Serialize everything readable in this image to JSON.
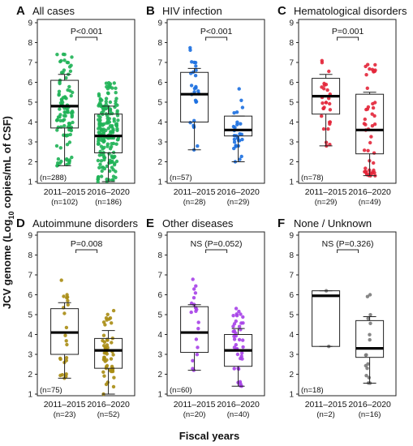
{
  "figure": {
    "y_axis_title": "JCV genome (Log10 copies/mL of CSF)",
    "x_axis_title": "Fiscal years"
  },
  "chart_data": [
    {
      "type": "box",
      "panel_label": "A",
      "title": "All cases",
      "n_total": "(n=288)",
      "p_text": "P<0.001",
      "color": "#1fb356",
      "ylim": [
        1,
        9
      ],
      "yticks": [
        1,
        2,
        3,
        4,
        5,
        6,
        7,
        8,
        9
      ],
      "categories": [
        "2011–2015",
        "2016–2020"
      ],
      "category_n": [
        "(n=102)",
        "(n=186)"
      ],
      "boxes": [
        {
          "q1": 3.7,
          "median": 4.8,
          "q3": 6.1,
          "whisker_low": 1.8,
          "whisker_high": 6.4,
          "n": 102
        },
        {
          "q1": 2.45,
          "median": 3.3,
          "q3": 4.4,
          "whisker_low": 1.0,
          "whisker_high": 4.8,
          "n": 186
        }
      ]
    },
    {
      "type": "box",
      "panel_label": "B",
      "title": "HIV infection",
      "n_total": "(n=57)",
      "p_text": "P<0.001",
      "color": "#1b6fe0",
      "ylim": [
        1,
        9
      ],
      "yticks": [
        1,
        2,
        3,
        4,
        5,
        6,
        7,
        8,
        9
      ],
      "categories": [
        "2011–2015",
        "2016–2020"
      ],
      "category_n": [
        "(n=28)",
        "(n=29)"
      ],
      "boxes": [
        {
          "q1": 4.0,
          "median": 5.4,
          "q3": 6.5,
          "whisker_low": 2.6,
          "whisker_high": 6.7,
          "n": 28
        },
        {
          "q1": 3.3,
          "median": 3.6,
          "q3": 4.3,
          "whisker_low": 2.0,
          "whisker_high": 4.3,
          "n": 29
        }
      ]
    },
    {
      "type": "box",
      "panel_label": "C",
      "title": "Hematological disorders",
      "n_total": "(n=78)",
      "p_text": "P=0.001",
      "color": "#e3263a",
      "ylim": [
        1,
        9
      ],
      "yticks": [
        1,
        2,
        3,
        4,
        5,
        6,
        7,
        8,
        9
      ],
      "categories": [
        "2011–2015",
        "2016–2020"
      ],
      "category_n": [
        "(n=29)",
        "(n=49)"
      ],
      "boxes": [
        {
          "q1": 4.4,
          "median": 5.3,
          "q3": 6.2,
          "whisker_low": 2.8,
          "whisker_high": 6.4,
          "n": 29
        },
        {
          "q1": 2.4,
          "median": 3.6,
          "q3": 5.4,
          "whisker_low": 1.3,
          "whisker_high": 5.5,
          "n": 49
        }
      ]
    },
    {
      "type": "box",
      "panel_label": "D",
      "title": "Autoimmune disorders",
      "n_total": "(n=75)",
      "p_text": "P=0.008",
      "color": "#a88c12",
      "ylim": [
        1,
        9
      ],
      "yticks": [
        1,
        2,
        3,
        4,
        5,
        6,
        7,
        8,
        9
      ],
      "categories": [
        "2011–2015",
        "2016–2020"
      ],
      "category_n": [
        "(n=23)",
        "(n=52)"
      ],
      "boxes": [
        {
          "q1": 3.0,
          "median": 4.1,
          "q3": 5.3,
          "whisker_low": 1.8,
          "whisker_high": 5.6,
          "n": 23
        },
        {
          "q1": 2.3,
          "median": 3.2,
          "q3": 3.8,
          "whisker_low": 1.0,
          "whisker_high": 4.2,
          "n": 52
        }
      ]
    },
    {
      "type": "box",
      "panel_label": "E",
      "title": "Other diseases",
      "n_total": "(n=60)",
      "p_text": "NS (P=0.052)",
      "color": "#a640e8",
      "ylim": [
        1,
        9
      ],
      "yticks": [
        1,
        2,
        3,
        4,
        5,
        6,
        7,
        8,
        9
      ],
      "categories": [
        "2011–2015",
        "2016–2020"
      ],
      "category_n": [
        "(n=20)",
        "(n=40)"
      ],
      "boxes": [
        {
          "q1": 3.1,
          "median": 4.1,
          "q3": 5.4,
          "whisker_low": 2.2,
          "whisker_high": 5.5,
          "n": 20
        },
        {
          "q1": 2.4,
          "median": 3.2,
          "q3": 4.0,
          "whisker_low": 1.4,
          "whisker_high": 4.3,
          "n": 40
        }
      ]
    },
    {
      "type": "box",
      "panel_label": "F",
      "title": "None / Unknown",
      "n_total": "(n=18)",
      "p_text": "NS (P=0.326)",
      "color": "#7a7a7a",
      "ylim": [
        1,
        9
      ],
      "yticks": [
        1,
        2,
        3,
        4,
        5,
        6,
        7,
        8,
        9
      ],
      "categories": [
        "2011–2015",
        "2016–2020"
      ],
      "category_n": [
        "(n=2)",
        "(n=16)"
      ],
      "boxes": [
        {
          "q1": 3.4,
          "median": 5.95,
          "q3": 6.2,
          "whisker_low": 3.4,
          "whisker_high": 6.2,
          "n": 2
        },
        {
          "q1": 2.85,
          "median": 3.3,
          "q3": 4.7,
          "whisker_low": 1.55,
          "whisker_high": 4.9,
          "n": 16
        }
      ]
    }
  ]
}
